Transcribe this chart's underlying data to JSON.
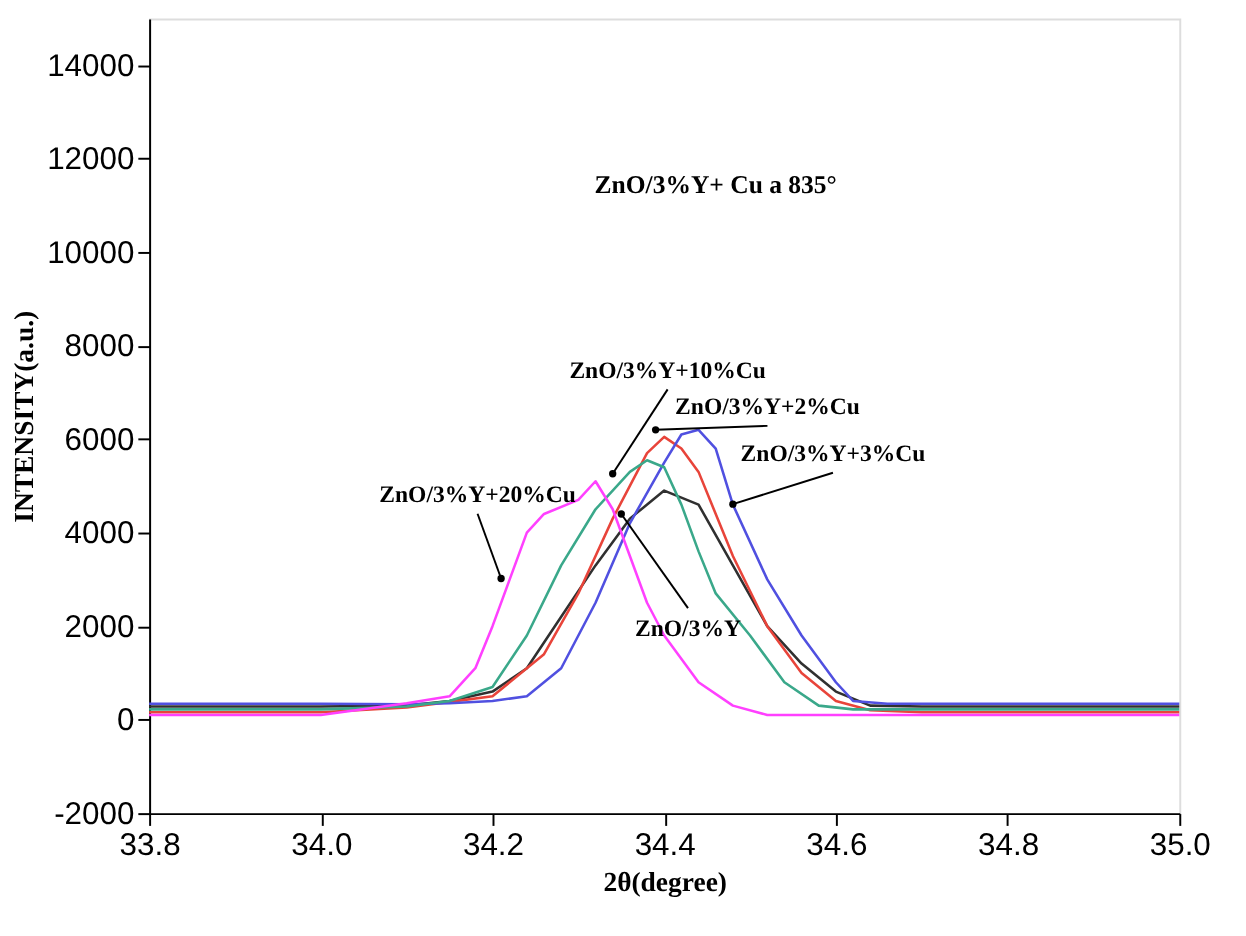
{
  "chart_data": {
    "type": "line",
    "title": "ZnO/3%Y+ Cu a 835°",
    "xlabel": "2θ(degree)",
    "ylabel": "INTENSITY(a.u.)",
    "xlim": [
      33.8,
      35.0
    ],
    "ylim": [
      -2000,
      15000
    ],
    "xticks": [
      33.8,
      {
        "value": 34.0,
        "label": "34.0"
      },
      34.2,
      34.4,
      34.6,
      34.8,
      {
        "value": 35.0,
        "label": "35.0"
      }
    ],
    "yticks": [
      -2000,
      0,
      2000,
      4000,
      6000,
      8000,
      10000,
      12000,
      14000
    ],
    "grid": false,
    "legend": false,
    "line_style": "solid",
    "marker": "none",
    "series": [
      {
        "color": "#303030",
        "x": [
          33.8,
          33.9,
          34.0,
          34.1,
          34.15,
          34.2,
          34.24,
          34.28,
          34.32,
          34.36,
          34.4,
          34.44,
          34.48,
          34.52,
          34.56,
          34.6,
          34.64,
          34.7,
          34.8,
          34.9,
          35.0
        ],
        "values": [
          280,
          280,
          280,
          300,
          400,
          600,
          1100,
          2200,
          3300,
          4300,
          4900,
          4600,
          3300,
          2000,
          1200,
          600,
          300,
          280,
          280,
          280,
          280
        ]
      },
      {
        "color": "#e8443a",
        "x": [
          33.8,
          33.9,
          34.0,
          34.1,
          34.15,
          34.2,
          34.26,
          34.3,
          34.34,
          34.38,
          34.4,
          34.42,
          34.44,
          34.48,
          34.52,
          34.56,
          34.6,
          34.64,
          34.7,
          34.8,
          34.9,
          35.0
        ],
        "values": [
          160,
          160,
          160,
          260,
          380,
          500,
          1400,
          2700,
          4300,
          5700,
          6050,
          5800,
          5300,
          3500,
          2000,
          1000,
          400,
          200,
          160,
          160,
          160,
          160
        ]
      },
      {
        "color": "#5050e0",
        "x": [
          33.8,
          33.9,
          34.0,
          34.1,
          34.15,
          34.2,
          34.24,
          34.28,
          34.32,
          34.36,
          34.4,
          34.42,
          34.44,
          34.46,
          34.48,
          34.52,
          34.56,
          34.6,
          34.62,
          34.66,
          34.7,
          34.8,
          34.9,
          35.0
        ],
        "values": [
          340,
          340,
          340,
          330,
          350,
          400,
          500,
          1100,
          2500,
          4200,
          5500,
          6100,
          6200,
          5800,
          4600,
          3000,
          1800,
          800,
          400,
          340,
          340,
          340,
          340,
          340
        ]
      },
      {
        "color": "#3aa88a",
        "x": [
          33.8,
          33.9,
          34.0,
          34.1,
          34.15,
          34.2,
          34.24,
          34.28,
          34.32,
          34.36,
          34.38,
          34.4,
          34.42,
          34.44,
          34.46,
          34.5,
          34.54,
          34.58,
          34.62,
          34.7,
          34.8,
          34.9,
          35.0
        ],
        "values": [
          220,
          220,
          220,
          280,
          400,
          700,
          1800,
          3300,
          4500,
          5300,
          5550,
          5400,
          4600,
          3600,
          2700,
          1800,
          800,
          300,
          220,
          220,
          220,
          220,
          220
        ]
      },
      {
        "color": "#ff40ff",
        "x": [
          33.8,
          33.9,
          34.0,
          34.1,
          34.15,
          34.18,
          34.2,
          34.22,
          34.24,
          34.26,
          34.3,
          34.32,
          34.34,
          34.36,
          34.38,
          34.4,
          34.44,
          34.48,
          34.52,
          34.6,
          34.7,
          34.8,
          34.9,
          35.0
        ],
        "values": [
          100,
          100,
          100,
          350,
          500,
          1100,
          2000,
          3000,
          4000,
          4400,
          4700,
          5100,
          4500,
          3500,
          2500,
          1800,
          800,
          300,
          100,
          100,
          100,
          100,
          100,
          100
        ]
      }
    ],
    "annotations": [
      {
        "text": "ZnO/3%Y+10%Cu",
        "x": 34.34,
        "y": 5260
      },
      {
        "text": "ZnO/3%Y+2%Cu",
        "x": 34.39,
        "y": 6200
      },
      {
        "text": "ZnO/3%Y+3%Cu",
        "x": 34.48,
        "y": 4610
      },
      {
        "text": "ZnO/3%Y+20%Cu",
        "x": 34.21,
        "y": 3020
      },
      {
        "text": "ZnO/3%Y",
        "x": 34.35,
        "y": 4400
      }
    ]
  }
}
